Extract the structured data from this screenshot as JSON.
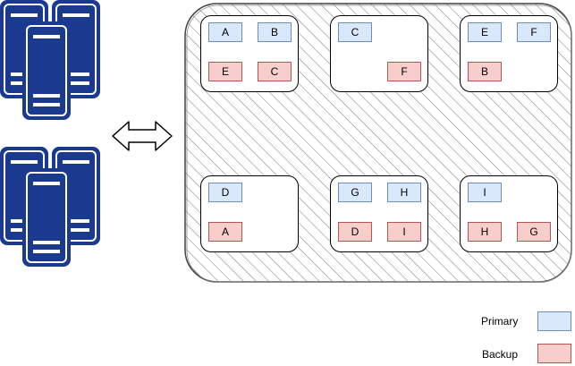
{
  "colors": {
    "primary_fill": "#dae8fc",
    "primary_border": "#6c8ebf",
    "backup_fill": "#f8cecc",
    "backup_border": "#b85450",
    "server_fill": "#1a3a8f",
    "server_stroke": "#ffffff"
  },
  "icons": {
    "servers": "server-rack-icon",
    "arrow": "double-arrow-icon"
  },
  "nodes": [
    {
      "id": "node-1",
      "primaries": [
        "A",
        "B"
      ],
      "backups": [
        "E",
        "C"
      ]
    },
    {
      "id": "node-2",
      "primaries": [
        "C"
      ],
      "backups": [
        "F"
      ]
    },
    {
      "id": "node-3",
      "primaries": [
        "E",
        "F"
      ],
      "backups": [
        "B"
      ]
    },
    {
      "id": "node-4",
      "primaries": [
        "D"
      ],
      "backups": [
        "A"
      ]
    },
    {
      "id": "node-5",
      "primaries": [
        "G",
        "H"
      ],
      "backups": [
        "D",
        "I"
      ]
    },
    {
      "id": "node-6",
      "primaries": [
        "I"
      ],
      "backups": [
        "H",
        "G"
      ]
    }
  ],
  "legend": {
    "primary_label": "Primary",
    "backup_label": "Backup"
  }
}
